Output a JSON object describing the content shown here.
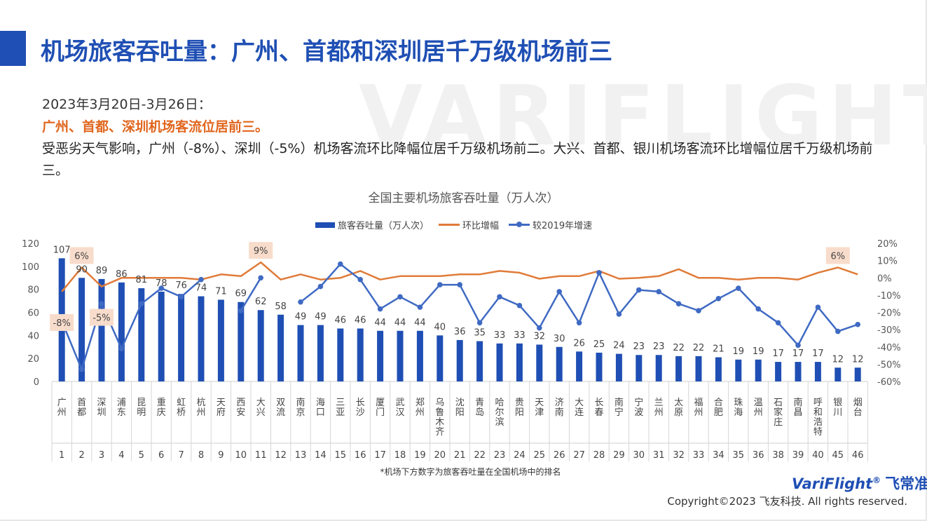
{
  "header": {
    "title": "机场旅客吞吐量：广州、首都和深圳居千万级机场前三",
    "watermark": "VARIFLIGHT"
  },
  "summary": {
    "date_line": "2023年3月20日-3月26日：",
    "highlight": "广州、首都、深圳机场客流位居前三。",
    "body": "受恶劣天气影响，广州（-8%）、深圳（-5%）机场客流环比降幅位居千万级机场前二。大兴、首都、银川机场客流环比增幅位居千万级机场前三。"
  },
  "footer": {
    "footnote": "*机场下方数字为旅客吞吐量在全国机场中的排名",
    "brand_en": "VariFlight",
    "brand_reg": "®",
    "brand_cn": "飞常准",
    "copyright": "Copyright©2023 飞友科技. All rights reserved."
  },
  "colors": {
    "bar": "#1f4fb4",
    "wow_line": "#e07b39",
    "vs2019_line": "#3f6ac3",
    "callout_bg": "#f8dccb"
  },
  "chart_data": {
    "type": "bar",
    "title": "全国主要机场旅客吞吐量（万人次）",
    "legend": [
      "旅客吞吐量（万人次）",
      "环比增幅",
      "较2019年增速"
    ],
    "legend_position": "top",
    "y_left": {
      "min": 0,
      "max": 120,
      "ticks": [
        "0",
        "20",
        "40",
        "60",
        "80",
        "100",
        "120"
      ]
    },
    "y_right": {
      "min": -60,
      "max": 20,
      "ticks": [
        "-60%",
        "-50%",
        "-40%",
        "-30%",
        "-20%",
        "-10%",
        "0%",
        "10%",
        "20%"
      ]
    },
    "categories": [
      "广州",
      "首都",
      "深圳",
      "浦东",
      "昆明",
      "重庆",
      "虹桥",
      "杭州",
      "天府",
      "西安",
      "大兴",
      "双流",
      "南京",
      "海口",
      "三亚",
      "长沙",
      "厦门",
      "武汉",
      "郑州",
      "乌鲁木齐",
      "沈阳",
      "青岛",
      "哈尔滨",
      "贵阳",
      "天津",
      "济南",
      "大连",
      "长春",
      "南宁",
      "宁波",
      "兰州",
      "太原",
      "福州",
      "合肥",
      "珠海",
      "温州",
      "石家庄",
      "南昌",
      "呼和浩特",
      "银川",
      "烟台"
    ],
    "ranks": [
      "1",
      "2",
      "3",
      "4",
      "5",
      "6",
      "7",
      "8",
      "9",
      "10",
      "11",
      "12",
      "13",
      "14",
      "15",
      "16",
      "17",
      "18",
      "19",
      "20",
      "21",
      "22",
      "23",
      "24",
      "25",
      "26",
      "27",
      "28",
      "29",
      "30",
      "31",
      "32",
      "33",
      "34",
      "35",
      "36",
      "38",
      "39",
      "40",
      "45",
      "46"
    ],
    "series": [
      {
        "name": "旅客吞吐量（万人次）",
        "axis": "left",
        "values": [
          107,
          90,
          89,
          86,
          81,
          78,
          76,
          74,
          71,
          69,
          62,
          58,
          49,
          49,
          46,
          46,
          44,
          44,
          44,
          40,
          36,
          35,
          33,
          33,
          32,
          30,
          26,
          25,
          24,
          23,
          23,
          22,
          22,
          21,
          19,
          19,
          17,
          17,
          17,
          12,
          12
        ],
        "labels": [
          "107",
          "90",
          "89",
          "86",
          "81",
          "78",
          "76",
          "74",
          "71",
          "69",
          "62",
          "58",
          "49",
          "49",
          "46",
          "46",
          "44",
          "44",
          "44",
          "40",
          "36",
          "35",
          "33",
          "33",
          "32",
          "30",
          "26",
          "25",
          "24",
          "23",
          "23",
          "22",
          "22",
          "21",
          "19",
          "19",
          "17",
          "17",
          "17",
          "12",
          "12"
        ]
      },
      {
        "name": "环比增幅",
        "axis": "right",
        "values": [
          -8,
          6,
          -5,
          0,
          0,
          0,
          0,
          -1,
          2,
          1,
          9,
          -1,
          2,
          -1,
          0,
          4,
          -1,
          1,
          1,
          1,
          2,
          2,
          4,
          3,
          -0.5,
          1,
          1,
          4,
          -0.5,
          0,
          1,
          5,
          0,
          0,
          -1,
          0,
          0,
          -1,
          3,
          6,
          2
        ]
      },
      {
        "name": "较2019年增速",
        "axis": "right",
        "values": [
          -25,
          -53,
          -15,
          -41,
          -15,
          -6,
          -11,
          -1,
          null,
          -19,
          0,
          null,
          -14,
          -5,
          8,
          -1,
          -18,
          -11,
          -17,
          -4,
          -4,
          -26,
          -11,
          -16,
          -29,
          -8,
          -26,
          3,
          -21,
          -7,
          -8,
          -15,
          -19,
          -12,
          -6,
          -18,
          -26,
          -39,
          -17,
          -31,
          -27
        ]
      }
    ],
    "callouts": [
      {
        "index": 0,
        "text": "-8%"
      },
      {
        "index": 1,
        "text": "6%"
      },
      {
        "index": 2,
        "text": "-5%"
      },
      {
        "index": 10,
        "text": "9%"
      },
      {
        "index": 39,
        "text": "6%"
      }
    ]
  }
}
